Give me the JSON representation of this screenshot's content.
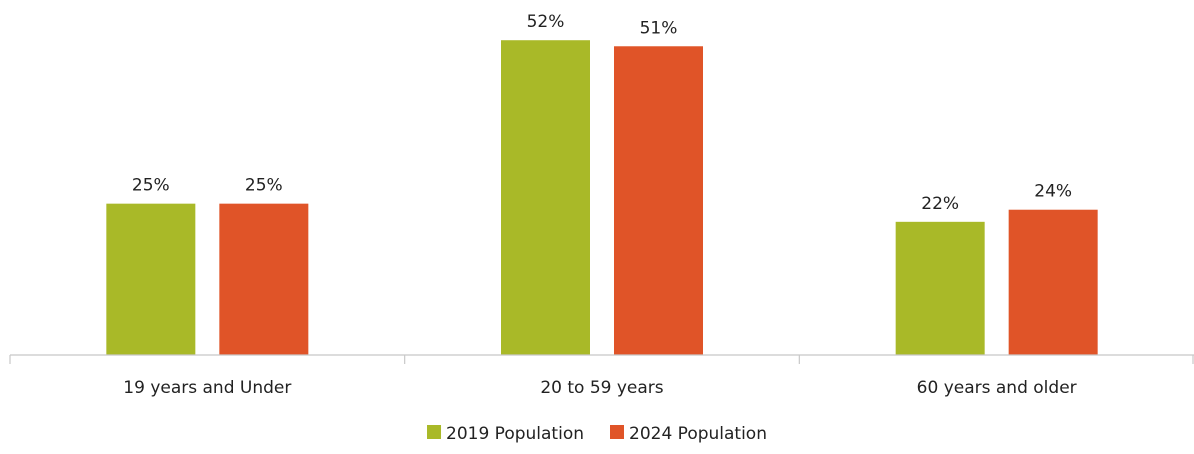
{
  "chart_data": {
    "type": "bar",
    "categories": [
      "19 years and Under",
      "20 to 59 years",
      "60 years and older"
    ],
    "series": [
      {
        "name": "2019 Population",
        "values": [
          25,
          52,
          22
        ],
        "labels": [
          "25%",
          "52%",
          "22%"
        ],
        "color": "#a9b928"
      },
      {
        "name": "2024 Population",
        "values": [
          25,
          51,
          24
        ],
        "labels": [
          "25%",
          "51%",
          "24%"
        ],
        "color": "#e05428"
      }
    ],
    "ylim": [
      0,
      56
    ],
    "grid": false,
    "legend": "bottom"
  }
}
